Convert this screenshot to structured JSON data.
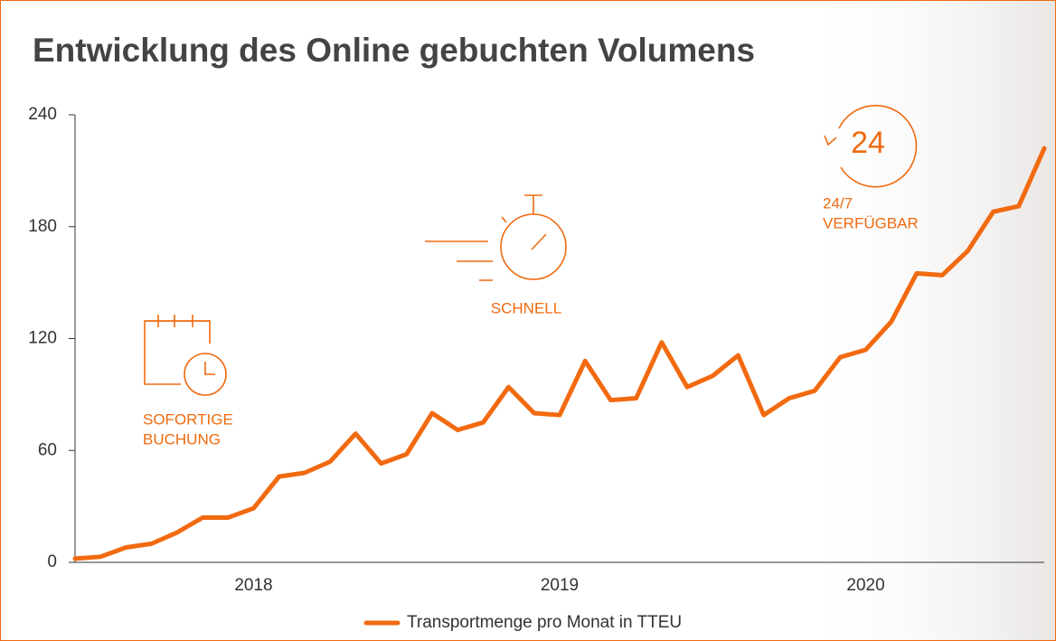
{
  "chart_data": {
    "type": "line",
    "title": "Entwicklung des Online gebuchten Volumens",
    "categories": [
      null,
      null,
      null,
      null,
      null,
      null,
      null,
      "2018",
      null,
      null,
      null,
      null,
      null,
      null,
      null,
      null,
      null,
      null,
      null,
      "2019",
      null,
      null,
      null,
      null,
      null,
      null,
      null,
      null,
      null,
      null,
      null,
      "2020",
      null,
      null,
      null,
      null,
      null,
      null,
      null
    ],
    "series": [
      {
        "name": "Transportmenge pro Monat in TTEU",
        "color": "#f26a10",
        "values": [
          2,
          3,
          8,
          10,
          16,
          24,
          24,
          29,
          46,
          48,
          54,
          69,
          53,
          58,
          80,
          71,
          75,
          94,
          80,
          79,
          108,
          87,
          88,
          118,
          94,
          100,
          111,
          79,
          88,
          92,
          110,
          114,
          129,
          155,
          154,
          167,
          188,
          191,
          222
        ]
      }
    ],
    "ylim": [
      0,
      240
    ],
    "yticks": [
      0,
      60,
      120,
      180,
      240
    ],
    "legend": "bottom",
    "annotations": [
      {
        "lines": [
          "SOFORTIGE",
          "BUCHUNG"
        ]
      },
      {
        "lines": [
          "SCHNELL"
        ]
      },
      {
        "lines": [
          "24/7",
          "VERFÜGBAR"
        ],
        "icon_text": "24"
      }
    ]
  }
}
